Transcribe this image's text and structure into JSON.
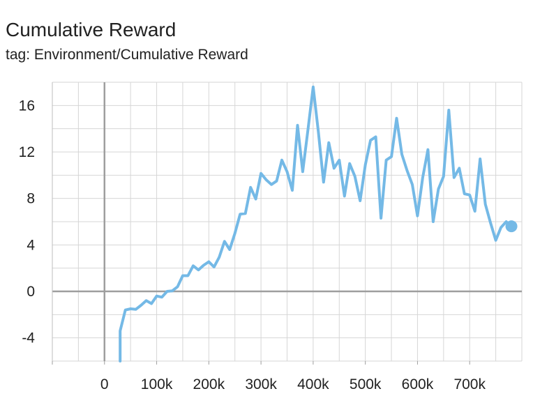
{
  "header": {
    "title": "Cumulative Reward",
    "subtitle": "tag: Environment/Cumulative Reward"
  },
  "chart_data": {
    "type": "line",
    "title": "Cumulative Reward",
    "subtitle": "tag: Environment/Cumulative Reward",
    "xlabel": "",
    "ylabel": "",
    "xlim": [
      -100000,
      800000
    ],
    "ylim": [
      -6,
      18
    ],
    "grid": true,
    "legend": "none",
    "line_color": "#74b9e6",
    "x_ticks": [
      0,
      100000,
      200000,
      300000,
      400000,
      500000,
      600000,
      700000
    ],
    "x_tick_labels": [
      "0",
      "100k",
      "200k",
      "300k",
      "400k",
      "500k",
      "600k",
      "700k"
    ],
    "y_ticks": [
      -4,
      0,
      4,
      8,
      12,
      16
    ],
    "y_tick_labels": [
      "-4",
      "0",
      "4",
      "8",
      "12",
      "16"
    ],
    "series": [
      {
        "x": [
          30000,
          30000,
          40000,
          50000,
          60000,
          70000,
          80000,
          90000,
          100000,
          110000,
          120000,
          130000,
          140000,
          150000,
          160000,
          170000,
          180000,
          190000,
          200000,
          210000,
          220000,
          230000,
          240000,
          250000,
          260000,
          270000,
          280000,
          290000,
          300000,
          310000,
          320000,
          330000,
          340000,
          350000,
          360000,
          370000,
          380000,
          390000,
          400000,
          410000,
          420000,
          430000,
          440000,
          450000,
          460000,
          470000,
          480000,
          490000,
          500000,
          510000,
          520000,
          530000,
          540000,
          550000,
          560000,
          570000,
          580000,
          590000,
          600000,
          610000,
          620000,
          630000,
          640000,
          650000,
          660000,
          670000,
          680000,
          690000,
          700000,
          710000,
          720000,
          730000,
          740000,
          750000,
          760000,
          770000,
          780000
        ],
        "y": [
          -6,
          -3.4,
          -1.6,
          -1.5,
          -1.55,
          -1.2,
          -0.8,
          -1.05,
          -0.4,
          -0.5,
          0,
          0.05,
          0.4,
          1.35,
          1.35,
          2.2,
          1.85,
          2.25,
          2.55,
          2.1,
          2.95,
          4.3,
          3.6,
          5.0,
          6.65,
          6.7,
          8.95,
          7.95,
          10.15,
          9.6,
          9.2,
          9.5,
          11.3,
          10.3,
          8.7,
          14.3,
          10.3,
          13.9,
          17.6,
          13.7,
          9.4,
          12.8,
          10.6,
          11.3,
          8.2,
          11.0,
          9.9,
          7.8,
          10.9,
          13.0,
          13.3,
          6.3,
          11.3,
          11.6,
          14.9,
          11.8,
          10.4,
          9.2,
          6.5,
          9.8,
          12.2,
          6.0,
          8.8,
          9.9,
          15.6,
          9.8,
          10.6,
          8.4,
          8.3,
          6.9,
          11.4,
          7.5,
          5.9,
          4.4,
          5.5,
          6.0,
          5.6
        ]
      }
    ]
  }
}
